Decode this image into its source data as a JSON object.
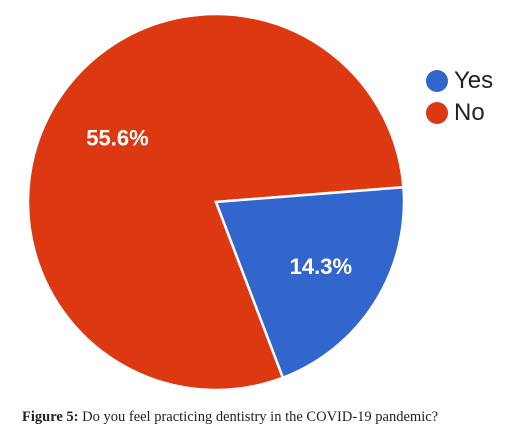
{
  "chart_data": {
    "type": "pie",
    "categories": [
      "Yes",
      "No"
    ],
    "values": [
      14.3,
      55.6
    ],
    "data_labels": [
      "14.3%",
      "55.6%"
    ],
    "colors": [
      "#3366cc",
      "#dc3912"
    ],
    "legend_position": "right"
  },
  "legend": {
    "items": [
      {
        "label": "Yes",
        "color": "#3366cc"
      },
      {
        "label": "No",
        "color": "#dc3912"
      }
    ]
  },
  "caption": {
    "lead": "Figure 5:",
    "text": " Do you feel practicing dentistry in the COVID-19 pandemic?"
  }
}
